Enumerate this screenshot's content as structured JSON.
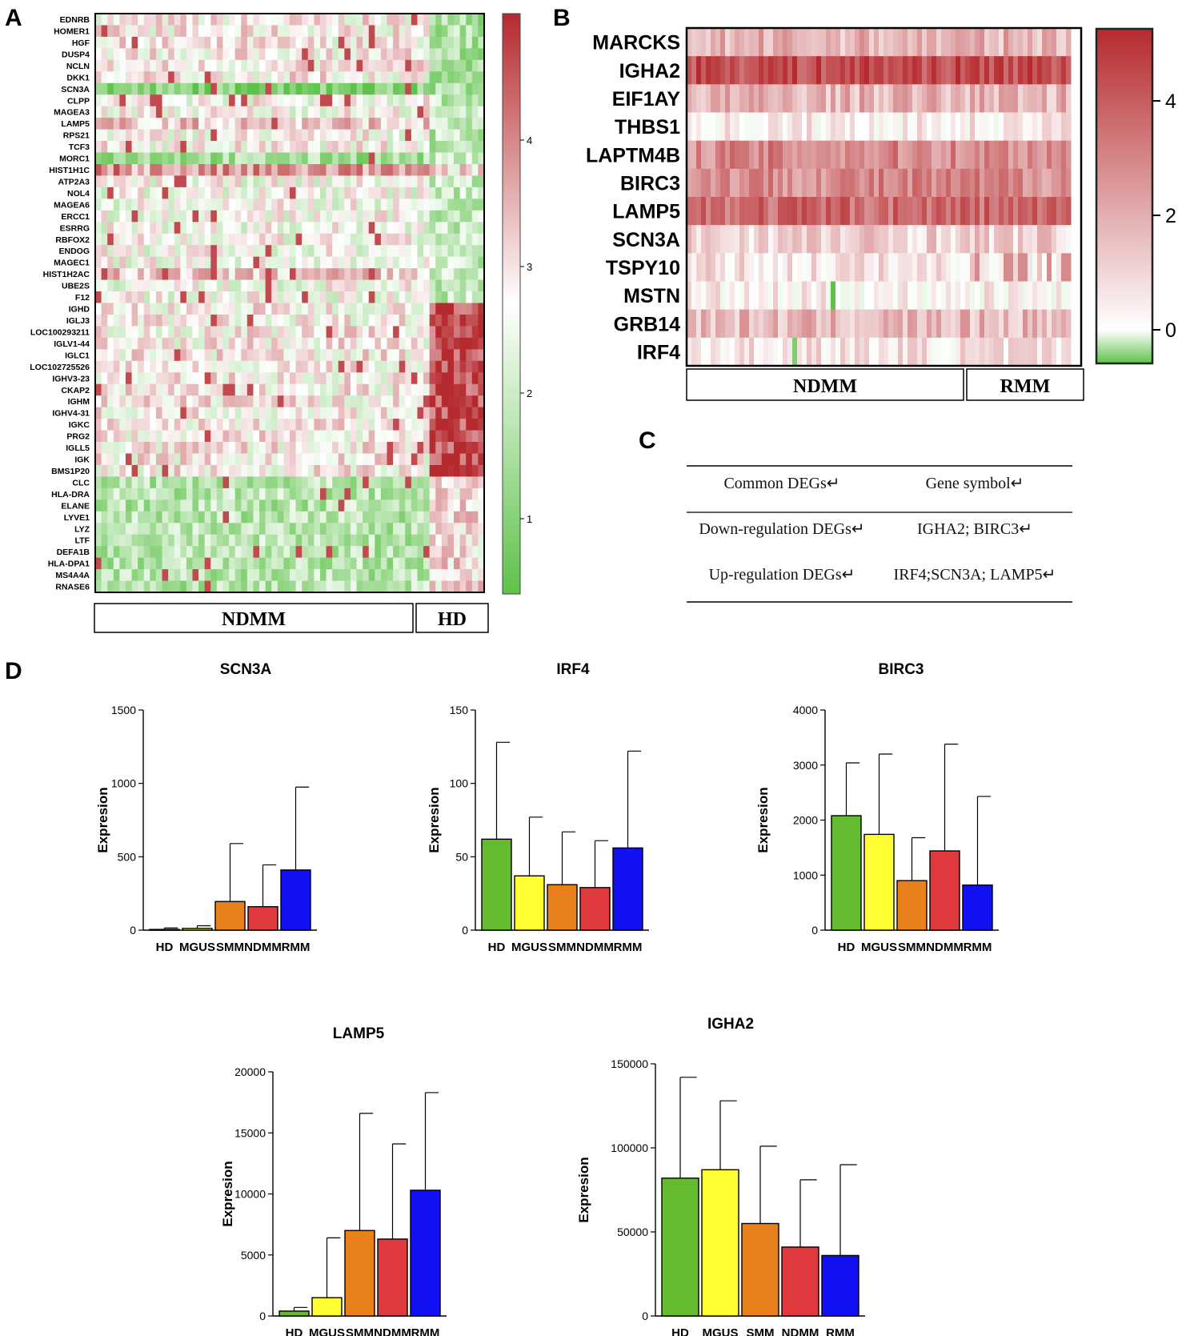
{
  "panel_labels": {
    "a": "A",
    "b": "B",
    "c": "C",
    "d": "D"
  },
  "colors": {
    "low": "#5ec24a",
    "mid": "#ffffff",
    "high": "#b52a2e"
  },
  "heatmap_a": {
    "genes": [
      "EDNRB",
      "HOMER1",
      "HGF",
      "DUSP4",
      "NCLN",
      "DKK1",
      "SCN3A",
      "CLPP",
      "MAGEA3",
      "LAMP5",
      "RPS21",
      "TCF3",
      "MORC1",
      "HIST1H1C",
      "ATP2A3",
      "NOL4",
      "MAGEA6",
      "ERCC1",
      "ESRRG",
      "RBFOX2",
      "ENDOG",
      "MAGEC1",
      "HIST1H2AC",
      "UBE2S",
      "F12",
      "IGHD",
      "IGLJ3",
      "LOC100293211",
      "IGLV1-44",
      "IGLC1",
      "LOC102725526",
      "IGHV3-23",
      "CKAP2",
      "IGHM",
      "IGHV4-31",
      "IGKC",
      "PRG2",
      "IGLL5",
      "IGK",
      "BMS1P20",
      "CLC",
      "HLA-DRA",
      "ELANE",
      "LYVE1",
      "LYZ",
      "LTF",
      "DEFA1B",
      "HLA-DPA1",
      "MS4A4A",
      "RNASE6"
    ],
    "groups": [
      "NDMM",
      "HD"
    ],
    "colorbar_ticks": [
      "1",
      "2",
      "3",
      "4"
    ]
  },
  "heatmap_b": {
    "genes": [
      "MARCKS",
      "IGHA2",
      "EIF1AY",
      "THBS1",
      "LAPTM4B",
      "BIRC3",
      "LAMP5",
      "SCN3A",
      "TSPY10",
      "MSTN",
      "GRB14",
      "IRF4"
    ],
    "groups": [
      "NDMM",
      "RMM"
    ],
    "colorbar_ticks": [
      "0",
      "2",
      "4"
    ]
  },
  "table_c": {
    "header": [
      "Common DEGs↵",
      "Gene symbol↵"
    ],
    "rows": [
      [
        "Down-regulation DEGs↵",
        "IGHA2; BIRC3↵"
      ],
      [
        "Up-regulation DEGs↵",
        "IRF4;SCN3A; LAMP5↵"
      ]
    ]
  },
  "chart_data": [
    {
      "type": "bar",
      "title": "SCN3A",
      "ylabel": "Expresion",
      "categories": [
        "HD",
        "MGUS",
        "SMM",
        "NDMM",
        "RMM"
      ],
      "values": [
        5,
        12,
        195,
        160,
        410
      ],
      "errors": [
        10,
        18,
        395,
        285,
        565
      ],
      "ylim": [
        0,
        1500
      ],
      "yticks": [
        "0",
        "500",
        "1000",
        "1500"
      ]
    },
    {
      "type": "bar",
      "title": "IRF4",
      "ylabel": "Expresion",
      "categories": [
        "HD",
        "MGUS",
        "SMM",
        "NDMM",
        "RMM"
      ],
      "values": [
        62,
        37,
        31,
        29,
        56
      ],
      "errors": [
        66,
        40,
        36,
        32,
        66
      ],
      "ylim": [
        0,
        150
      ],
      "yticks": [
        "0",
        "50",
        "100",
        "150"
      ]
    },
    {
      "type": "bar",
      "title": "BIRC3",
      "ylabel": "Expresion",
      "categories": [
        "HD",
        "MGUS",
        "SMM",
        "NDMM",
        "RMM"
      ],
      "values": [
        2080,
        1740,
        900,
        1440,
        820
      ],
      "errors": [
        960,
        1460,
        780,
        1940,
        1610
      ],
      "ylim": [
        0,
        4000
      ],
      "yticks": [
        "0",
        "1000",
        "2000",
        "3000",
        "4000"
      ]
    },
    {
      "type": "bar",
      "title": "LAMP5",
      "ylabel": "Expresion",
      "categories": [
        "HD",
        "MGUS",
        "SMM",
        "NDMM",
        "RMM"
      ],
      "values": [
        400,
        1500,
        7000,
        6300,
        10300
      ],
      "errors": [
        300,
        4900,
        9600,
        7800,
        8000
      ],
      "ylim": [
        0,
        20000
      ],
      "yticks": [
        "0",
        "5000",
        "10000",
        "15000",
        "20000"
      ]
    },
    {
      "type": "bar",
      "title": "IGHA2",
      "ylabel": "Expresion",
      "categories": [
        "HD",
        "MGUS",
        "SMM",
        "NDMM",
        "RMM"
      ],
      "values": [
        82000,
        87000,
        55000,
        41000,
        36000
      ],
      "errors": [
        60000,
        41000,
        46000,
        40000,
        54000
      ],
      "ylim": [
        0,
        150000
      ],
      "yticks": [
        "0",
        "50000",
        "100000",
        "150000"
      ]
    }
  ]
}
